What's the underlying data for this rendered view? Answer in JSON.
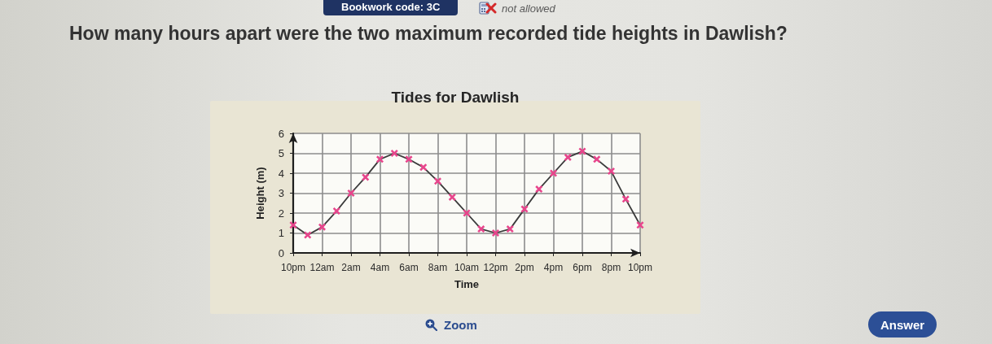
{
  "chart_data": {
    "type": "line",
    "title": "Tides for Dawlish",
    "xlabel": "Time",
    "ylabel": "Height (m)",
    "annotations": [
      "Bookwork code: 3C",
      "not allowed",
      "How many hours apart were the two maximum recorded tide heights in Dawlish?",
      "Zoom",
      "Answer"
    ],
    "categories": [
      "10pm",
      null,
      "12am",
      null,
      "2am",
      null,
      "4am",
      null,
      "6am",
      null,
      "8am",
      null,
      "10am",
      null,
      "12pm",
      null,
      "2pm",
      null,
      "4pm",
      null,
      "6pm",
      null,
      "8pm",
      null,
      "10pm"
    ],
    "values": [
      1.4,
      0.9,
      1.3,
      2.1,
      3.0,
      3.8,
      4.7,
      5.0,
      4.7,
      4.3,
      3.6,
      2.8,
      2.0,
      1.2,
      1.0,
      1.2,
      2.2,
      3.2,
      4.0,
      4.8,
      5.1,
      4.7,
      4.1,
      2.7,
      1.4
    ],
    "color": "#e8458c",
    "ylim": [
      0,
      6
    ],
    "yticks": [
      0,
      1,
      2,
      3,
      4,
      5,
      6
    ],
    "grid": true,
    "marker": "cross"
  }
}
